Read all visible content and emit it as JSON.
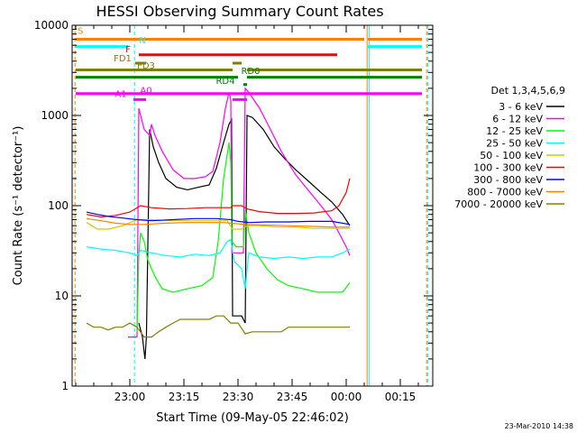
{
  "chart_data": {
    "type": "line",
    "title": "HESSI Observing Summary Count Rates",
    "xlabel": "Start Time (09-May-05 22:46:02)",
    "ylabel": "Count Rate (s⁻¹ detector⁻¹)",
    "footer": "23-Mar-2010 14:38",
    "x_unit": "minutes after 22:46:02",
    "xlim": [
      -2,
      98
    ],
    "ylim": [
      1,
      10000
    ],
    "y_scale": "log",
    "grid": false,
    "legend_position": "right",
    "legend_title": "Det 1,3,4,5,6,9",
    "x_ticks": [
      {
        "t": 14,
        "label": "23:00"
      },
      {
        "t": 29,
        "label": "23:15"
      },
      {
        "t": 44,
        "label": "23:30"
      },
      {
        "t": 59,
        "label": "23:45"
      },
      {
        "t": 74,
        "label": "00:00"
      },
      {
        "t": 89,
        "label": "00:15"
      }
    ],
    "y_ticks": [
      {
        "v": 1,
        "label": "1"
      },
      {
        "v": 10,
        "label": "10"
      },
      {
        "v": 100,
        "label": "100"
      },
      {
        "v": 1000,
        "label": "1000"
      },
      {
        "v": 10000,
        "label": "10000"
      }
    ],
    "series": [
      {
        "name": "3 - 6 keV",
        "color": "#000000",
        "points": [
          [
            16.5,
            5
          ],
          [
            17.5,
            3.5
          ],
          [
            18.2,
            2
          ],
          [
            18.6,
            3.5
          ],
          [
            19.5,
            700
          ],
          [
            20.5,
            450
          ],
          [
            22,
            300
          ],
          [
            24,
            200
          ],
          [
            27,
            160
          ],
          [
            30,
            150
          ],
          [
            33,
            160
          ],
          [
            36,
            170
          ],
          [
            38,
            260
          ],
          [
            40,
            500
          ],
          [
            41.5,
            800
          ],
          [
            42.2,
            900
          ],
          [
            42.5,
            6
          ],
          [
            43,
            6
          ],
          [
            45,
            6
          ],
          [
            46,
            5
          ],
          [
            46.5,
            1000
          ],
          [
            48,
            950
          ],
          [
            51,
            700
          ],
          [
            54,
            450
          ],
          [
            57,
            330
          ],
          [
            60,
            250
          ],
          [
            64,
            180
          ],
          [
            67,
            140
          ],
          [
            70,
            110
          ],
          [
            73,
            80
          ],
          [
            75,
            60
          ]
        ]
      },
      {
        "name": "6 - 12 keV",
        "color": "#ff00ff",
        "points": [
          [
            13.5,
            3.5
          ],
          [
            15,
            3.5
          ],
          [
            16,
            3.5
          ],
          [
            16.5,
            1200
          ],
          [
            17,
            1000
          ],
          [
            18,
            700
          ],
          [
            19.5,
            600
          ],
          [
            20,
            800
          ],
          [
            21,
            600
          ],
          [
            23,
            400
          ],
          [
            26,
            250
          ],
          [
            29,
            200
          ],
          [
            32,
            200
          ],
          [
            35,
            210
          ],
          [
            37,
            240
          ],
          [
            39,
            500
          ],
          [
            40.5,
            1200
          ],
          [
            41.5,
            1800
          ],
          [
            42,
            1500
          ],
          [
            42.3,
            30
          ],
          [
            44,
            30
          ],
          [
            45.5,
            30
          ],
          [
            46,
            2000
          ],
          [
            47,
            1800
          ],
          [
            50,
            1200
          ],
          [
            53,
            700
          ],
          [
            56,
            400
          ],
          [
            60,
            220
          ],
          [
            64,
            140
          ],
          [
            67,
            100
          ],
          [
            70,
            70
          ],
          [
            72,
            50
          ],
          [
            74,
            35
          ],
          [
            75,
            28
          ]
        ]
      },
      {
        "name": "12 - 25 keV",
        "color": "#00ff00",
        "points": [
          [
            16,
            4
          ],
          [
            16.5,
            30
          ],
          [
            17,
            50
          ],
          [
            18,
            40
          ],
          [
            19,
            25
          ],
          [
            20,
            20
          ],
          [
            21.5,
            15
          ],
          [
            23,
            12
          ],
          [
            26,
            11
          ],
          [
            30,
            12
          ],
          [
            34,
            13
          ],
          [
            37,
            16
          ],
          [
            38.5,
            40
          ],
          [
            40,
            200
          ],
          [
            41.5,
            500
          ],
          [
            42,
            300
          ],
          [
            42.3,
            40
          ],
          [
            43.5,
            35
          ],
          [
            45.5,
            35
          ],
          [
            46,
            90
          ],
          [
            47,
            50
          ],
          [
            49,
            30
          ],
          [
            52,
            20
          ],
          [
            55,
            15
          ],
          [
            58,
            13
          ],
          [
            62,
            12
          ],
          [
            66,
            11
          ],
          [
            70,
            11
          ],
          [
            73,
            11
          ],
          [
            75,
            14
          ]
        ]
      },
      {
        "name": "25 - 50 keV",
        "color": "#00ffff",
        "points": [
          [
            2,
            35
          ],
          [
            6,
            33
          ],
          [
            10,
            32
          ],
          [
            14,
            30
          ],
          [
            16,
            28
          ],
          [
            17,
            32
          ],
          [
            20,
            30
          ],
          [
            24,
            28
          ],
          [
            28,
            27
          ],
          [
            32,
            29
          ],
          [
            36,
            28
          ],
          [
            39,
            30
          ],
          [
            41,
            40
          ],
          [
            42,
            42
          ],
          [
            43,
            24
          ],
          [
            45,
            20
          ],
          [
            46,
            12
          ],
          [
            47,
            30
          ],
          [
            50,
            27
          ],
          [
            54,
            26
          ],
          [
            58,
            27
          ],
          [
            62,
            26
          ],
          [
            66,
            27
          ],
          [
            70,
            27
          ],
          [
            73,
            30
          ],
          [
            75,
            33
          ]
        ]
      },
      {
        "name": "50 - 100 keV",
        "color": "#cccc00",
        "points": [
          [
            2,
            65
          ],
          [
            5,
            55
          ],
          [
            8,
            55
          ],
          [
            12,
            60
          ],
          [
            16,
            70
          ],
          [
            20,
            70
          ],
          [
            26,
            68
          ],
          [
            32,
            68
          ],
          [
            38,
            68
          ],
          [
            41,
            68
          ],
          [
            42.5,
            55
          ],
          [
            45,
            55
          ],
          [
            46.5,
            60
          ],
          [
            50,
            60
          ],
          [
            55,
            58
          ],
          [
            60,
            58
          ],
          [
            65,
            56
          ],
          [
            70,
            56
          ],
          [
            73,
            56
          ],
          [
            75,
            56
          ]
        ]
      },
      {
        "name": "100 - 300 keV",
        "color": "#ff0000",
        "points": [
          [
            2,
            80
          ],
          [
            6,
            75
          ],
          [
            10,
            78
          ],
          [
            14,
            85
          ],
          [
            17,
            100
          ],
          [
            20,
            95
          ],
          [
            25,
            92
          ],
          [
            30,
            93
          ],
          [
            35,
            95
          ],
          [
            40,
            95
          ],
          [
            42,
            95
          ],
          [
            42.5,
            100
          ],
          [
            45,
            100
          ],
          [
            46.5,
            92
          ],
          [
            50,
            86
          ],
          [
            55,
            82
          ],
          [
            60,
            82
          ],
          [
            65,
            83
          ],
          [
            70,
            88
          ],
          [
            72,
            100
          ],
          [
            74,
            140
          ],
          [
            75,
            200
          ]
        ]
      },
      {
        "name": "300 - 800 keV",
        "color": "#0000ff",
        "points": [
          [
            2,
            85
          ],
          [
            5,
            80
          ],
          [
            8,
            76
          ],
          [
            12,
            73
          ],
          [
            16,
            70
          ],
          [
            20,
            68
          ],
          [
            26,
            70
          ],
          [
            32,
            72
          ],
          [
            38,
            72
          ],
          [
            42,
            70
          ],
          [
            44,
            67
          ],
          [
            47,
            65
          ],
          [
            52,
            66
          ],
          [
            58,
            66
          ],
          [
            64,
            67
          ],
          [
            70,
            67
          ],
          [
            75,
            62
          ]
        ]
      },
      {
        "name": "800 - 7000 keV",
        "color": "#ff8000",
        "points": [
          [
            2,
            72
          ],
          [
            6,
            68
          ],
          [
            10,
            64
          ],
          [
            14,
            62
          ],
          [
            18,
            62
          ],
          [
            24,
            64
          ],
          [
            30,
            65
          ],
          [
            36,
            65
          ],
          [
            40,
            65
          ],
          [
            42,
            64
          ],
          [
            46,
            62
          ],
          [
            52,
            61
          ],
          [
            58,
            60
          ],
          [
            64,
            59
          ],
          [
            70,
            58
          ],
          [
            75,
            58
          ]
        ]
      },
      {
        "name": "7000 - 20000 keV",
        "color": "#808000",
        "points": [
          [
            2,
            5
          ],
          [
            4,
            4.5
          ],
          [
            6,
            4.5
          ],
          [
            8,
            4.2
          ],
          [
            10,
            4.5
          ],
          [
            12,
            4.5
          ],
          [
            14,
            5
          ],
          [
            16,
            4.5
          ],
          [
            18,
            3.5
          ],
          [
            20,
            3.5
          ],
          [
            22,
            4
          ],
          [
            24,
            4.5
          ],
          [
            26,
            5
          ],
          [
            28,
            5.5
          ],
          [
            30,
            5.5
          ],
          [
            32,
            5.5
          ],
          [
            34,
            5.5
          ],
          [
            36,
            5.5
          ],
          [
            38,
            6
          ],
          [
            40,
            6
          ],
          [
            42,
            5
          ],
          [
            44,
            5
          ],
          [
            46,
            3.8
          ],
          [
            48,
            4
          ],
          [
            50,
            4
          ],
          [
            52,
            4
          ],
          [
            54,
            4
          ],
          [
            56,
            4
          ],
          [
            58,
            4.5
          ],
          [
            60,
            4.5
          ],
          [
            62,
            4.5
          ],
          [
            64,
            4.5
          ],
          [
            66,
            4.5
          ],
          [
            68,
            4.5
          ],
          [
            70,
            4.5
          ],
          [
            72,
            4.5
          ],
          [
            74,
            4.5
          ],
          [
            75,
            4.5
          ]
        ]
      }
    ],
    "flag_bars": [
      {
        "label": "S",
        "color": "#ff8000",
        "y": 7000,
        "start": -1,
        "end": 79
      },
      {
        "label": "S",
        "color": "#ff8000",
        "y": 7000,
        "start": 80,
        "end": 95
      },
      {
        "label": "N",
        "color": "#00ffff",
        "y": 5800,
        "start": -1,
        "end": 13.5
      },
      {
        "label": "N",
        "color": "#00ffff",
        "y": 5800,
        "start": 80,
        "end": 95
      },
      {
        "label": "F",
        "color": "#ff0000",
        "y": 4700,
        "start": 16.5,
        "end": 71.5
      },
      {
        "label": "FD1",
        "color": "#808000",
        "y": 3800,
        "start": 15.5,
        "end": 18.5
      },
      {
        "label": "FD1",
        "color": "#808000",
        "y": 3800,
        "start": 42.5,
        "end": 45
      },
      {
        "label": "FD3",
        "color": "#808000",
        "y": 3200,
        "start": -1,
        "end": 42.5
      },
      {
        "label": "FD3",
        "color": "#808000",
        "y": 3200,
        "start": 46.5,
        "end": 95
      },
      {
        "label": "RD0",
        "color": "#008000",
        "y": 2650,
        "start": -1,
        "end": 44
      },
      {
        "label": "RD0",
        "color": "#008000",
        "y": 2650,
        "start": 46.5,
        "end": 95
      },
      {
        "label": "RD4",
        "color": "#008000",
        "y": 2200,
        "start": 45.5,
        "end": 46.5
      },
      {
        "label": "A1",
        "color": "#ff00ff",
        "y": 1750,
        "start": -1,
        "end": 95
      },
      {
        "label": "A0",
        "color": "#ff00ff",
        "y": 1500,
        "start": 15,
        "end": 18.5
      },
      {
        "label": "A0",
        "color": "#ff00ff",
        "y": 1500,
        "start": 42.5,
        "end": 46.5
      }
    ],
    "flag_labels": [
      {
        "text": "S",
        "color": "#ff8000",
        "t": 0.3,
        "y": 8000
      },
      {
        "text": "N",
        "color": "#00ffff",
        "t": 17.5,
        "y": 6300
      },
      {
        "text": "F",
        "color": "#ff0000",
        "t": 13.5,
        "y": 5000
      },
      {
        "text": "FD1",
        "color": "#808000",
        "t": 12.0,
        "y": 4000
      },
      {
        "text": "FD3",
        "color": "#808000",
        "t": 18.5,
        "y": 3300
      },
      {
        "text": "RD0",
        "color": "#008000",
        "t": 47.5,
        "y": 2900
      },
      {
        "text": "RD4",
        "color": "#008000",
        "t": 40.5,
        "y": 2250
      },
      {
        "text": "A1",
        "color": "#ff00ff",
        "t": 11.5,
        "y": 1600
      },
      {
        "text": "A0",
        "color": "#ff00ff",
        "t": 18.5,
        "y": 1750
      }
    ],
    "vertical_lines": [
      {
        "t": -1.2,
        "color": "#ff8000",
        "dashed": true
      },
      {
        "t": 15.3,
        "color": "#00ffff",
        "dashed": true
      },
      {
        "t": 79.8,
        "color": "#ff8000",
        "dashed": false
      },
      {
        "t": 80.4,
        "color": "#00ffff",
        "dashed": false
      },
      {
        "t": 96.3,
        "color": "#ff8000",
        "dashed": true
      },
      {
        "t": 96.6,
        "color": "#00ffff",
        "dashed": true
      }
    ]
  }
}
